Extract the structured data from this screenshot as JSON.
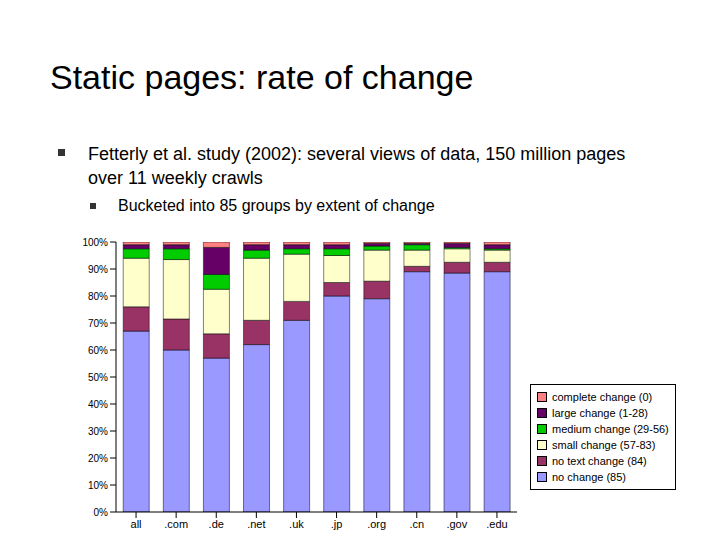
{
  "title": "Static pages: rate of change",
  "bullets": [
    {
      "text": "Fetterly et al. study (2002): several views of data, 150 million pages over 11 weekly crawls",
      "sub_bullets": [
        "Bucketed into 85 groups by extent of change"
      ]
    }
  ],
  "chart_data": {
    "type": "bar",
    "stacked": true,
    "grid": false,
    "legend": "right",
    "categories": [
      "all",
      ".com",
      ".de",
      ".net",
      ".uk",
      ".jp",
      ".org",
      ".cn",
      ".gov",
      ".edu"
    ],
    "series": [
      {
        "name": "no change (85)",
        "color": "#9999ff",
        "values": [
          67,
          60,
          57,
          62,
          71,
          80,
          79,
          89,
          88.5,
          89
        ]
      },
      {
        "name": "no text change (84)",
        "color": "#993366",
        "values": [
          9,
          11.5,
          9,
          9,
          7,
          5,
          6.5,
          2,
          4,
          3.5
        ]
      },
      {
        "name": "small change (57-83)",
        "color": "#ffffcc",
        "values": [
          18,
          22,
          16.5,
          23,
          17.5,
          10,
          11.5,
          6,
          5,
          4.5
        ]
      },
      {
        "name": "medium change (29-56)",
        "color": "#00cc00",
        "values": [
          3.5,
          4,
          5.5,
          3,
          2,
          2.5,
          1.5,
          2,
          0.5,
          0.5
        ]
      },
      {
        "name": "large change (1-28)",
        "color": "#660066",
        "values": [
          1.5,
          1.5,
          10,
          2,
          1.5,
          1.5,
          1,
          0.5,
          1.5,
          1.5
        ]
      },
      {
        "name": "complete change (0)",
        "color": "#ff8080",
        "values": [
          1,
          1,
          2,
          1,
          1,
          1,
          0.5,
          0.5,
          0.5,
          1
        ]
      }
    ],
    "ylim": [
      0,
      100
    ],
    "yticks": [
      {
        "value": 0,
        "label": "0%"
      },
      {
        "value": 10,
        "label": "10%"
      },
      {
        "value": 20,
        "label": "20%"
      },
      {
        "value": 30,
        "label": "30%"
      },
      {
        "value": 40,
        "label": "40%"
      },
      {
        "value": 50,
        "label": "50%"
      },
      {
        "value": 60,
        "label": "60%"
      },
      {
        "value": 70,
        "label": "70%"
      },
      {
        "value": 80,
        "label": "80%"
      },
      {
        "value": 90,
        "label": "90%"
      },
      {
        "value": 100,
        "label": "100%"
      }
    ]
  }
}
